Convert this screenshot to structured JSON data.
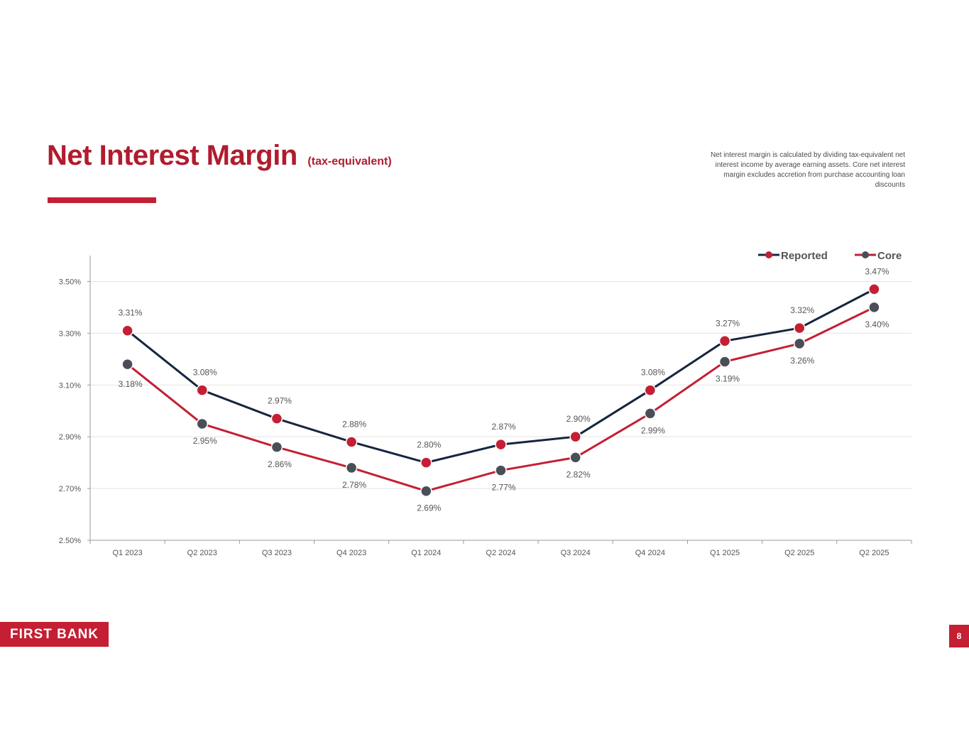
{
  "header": {
    "title": "Net Interest Margin",
    "subtitle": "(tax-equivalent)",
    "note": "Net interest margin is calculated by dividing tax-equivalent net interest income by average earning assets. Core net interest margin excludes accretion from purchase accounting loan discounts"
  },
  "footer": {
    "logo_text": "FIRST BANK",
    "page_number": "8"
  },
  "colors": {
    "accent": "#c41f33",
    "navy": "#14263f",
    "gray_marker": "#4a4f57",
    "grid": "#e3e3e3",
    "axis": "#9a9a9a",
    "label": "#555555"
  },
  "chart_data": {
    "type": "line",
    "categories": [
      "Q1 2023",
      "Q2 2023",
      "Q3 2023",
      "Q4 2023",
      "Q1 2024",
      "Q2 2024",
      "Q3 2024",
      "Q4 2024",
      "Q1 2025",
      "Q2 2025",
      "Q2 2025"
    ],
    "series": [
      {
        "name": "Reported",
        "values": [
          3.31,
          3.08,
          2.97,
          2.88,
          2.8,
          2.87,
          2.9,
          3.08,
          3.27,
          3.32,
          3.47
        ],
        "labels": [
          "3.31%",
          "3.08%",
          "2.97%",
          "2.88%",
          "2.80%",
          "2.87%",
          "2.90%",
          "3.08%",
          "3.27%",
          "3.32%",
          "3.47%"
        ],
        "line_color": "#14263f",
        "marker_color": "#c41f33"
      },
      {
        "name": "Core",
        "values": [
          3.18,
          2.95,
          2.86,
          2.78,
          2.69,
          2.77,
          2.82,
          2.99,
          3.19,
          3.26,
          3.4
        ],
        "labels": [
          "3.18%",
          "2.95%",
          "2.86%",
          "2.78%",
          "2.69%",
          "2.77%",
          "2.82%",
          "2.99%",
          "3.19%",
          "3.26%",
          "3.40%"
        ],
        "line_color": "#c41f33",
        "marker_color": "#4a4f57"
      }
    ],
    "ylim": [
      2.5,
      3.6
    ],
    "yticks": [
      2.5,
      2.7,
      2.9,
      3.1,
      3.3,
      3.5
    ],
    "ytick_labels": [
      "2.50%",
      "2.70%",
      "2.90%",
      "3.10%",
      "3.30%",
      "3.50%"
    ],
    "grid": true,
    "legend": "top-right",
    "title": "",
    "xlabel": "",
    "ylabel": ""
  }
}
